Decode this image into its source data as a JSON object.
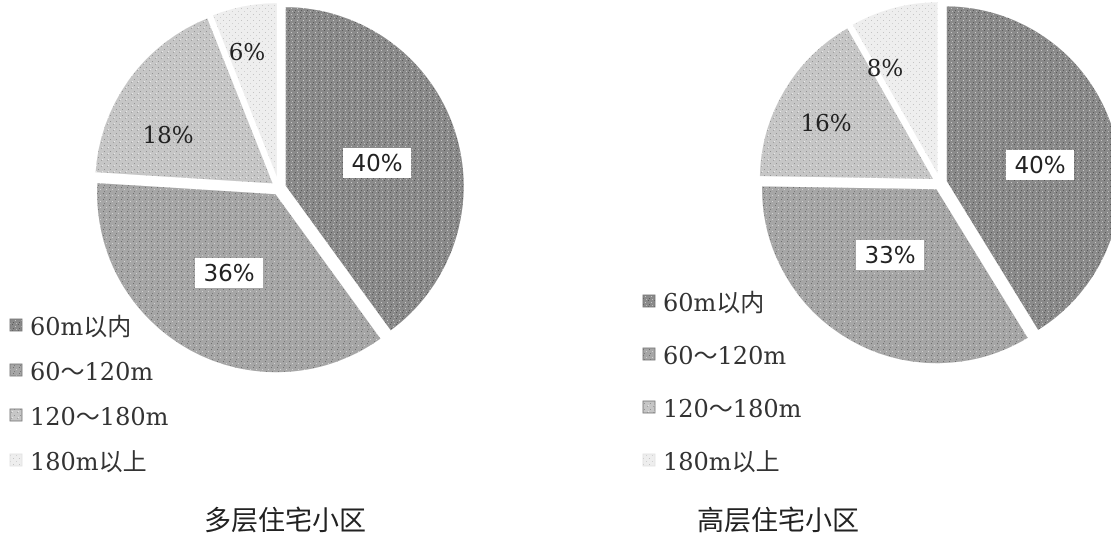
{
  "chart_data": [
    {
      "type": "pie",
      "title": "多层住宅小区",
      "categories": [
        "60m以内",
        "60～120m",
        "120～180m",
        "180m以上"
      ],
      "values": [
        40,
        36,
        18,
        6
      ],
      "labels": [
        "40%",
        "36%",
        "18%",
        "6%"
      ],
      "colors": [
        "#8a8a8a",
        "#a3a3a3",
        "#c4c4c4",
        "#ececec"
      ],
      "legend": "left-bottom"
    },
    {
      "type": "pie",
      "title": "高层住宅小区",
      "categories": [
        "60m以内",
        "60～120m",
        "120～180m",
        "180m以上"
      ],
      "values": [
        40,
        33,
        16,
        8
      ],
      "labels": [
        "40%",
        "33%",
        "16%",
        "8%"
      ],
      "colors": [
        "#8a8a8a",
        "#a3a3a3",
        "#c4c4c4",
        "#ececec"
      ],
      "legend": "left-bottom"
    }
  ]
}
